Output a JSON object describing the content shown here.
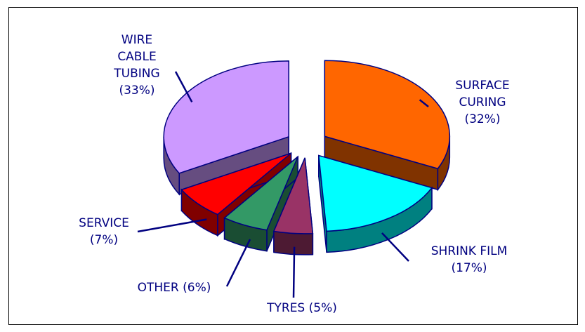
{
  "chart_data": {
    "type": "pie3d",
    "categories": [
      "SURFACE CURING",
      "SHRINK FILM",
      "TYRES",
      "OTHER",
      "SERVICE",
      "WIRE CABLE TUBING"
    ],
    "values": [
      32,
      17,
      5,
      6,
      7,
      33
    ],
    "value_labels": [
      "(32%)",
      "(17%)",
      "(5%)",
      "(6%)",
      "(7%)",
      "(33%)"
    ],
    "colors": [
      "#ff6600",
      "#00ffff",
      "#993366",
      "#339966",
      "#ff0000",
      "#cc99ff"
    ]
  }
}
